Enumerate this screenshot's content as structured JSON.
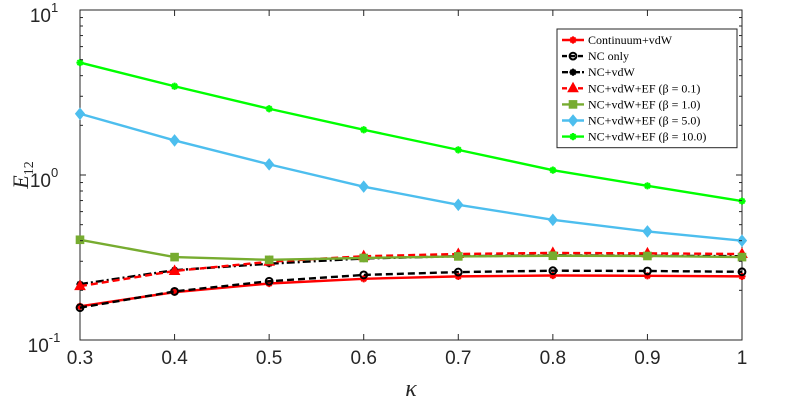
{
  "chart_data": {
    "type": "line",
    "title": "",
    "xlabel": "κ",
    "ylabel": "E",
    "ylabel_sub": "12",
    "x": [
      0.3,
      0.4,
      0.5,
      0.6,
      0.7,
      0.8,
      0.9,
      1.0
    ],
    "xlim": [
      0.3,
      1.0
    ],
    "ylim": [
      0.1,
      10
    ],
    "yscale": "log",
    "grid": false,
    "legend_position": "top-right",
    "x_tick_labels": [
      "0.3",
      "0.4",
      "0.5",
      "0.6",
      "0.7",
      "0.8",
      "0.9",
      "1"
    ],
    "y_ticks": [
      {
        "value": 10,
        "base": "10",
        "exp": "1"
      },
      {
        "value": 1,
        "base": "10",
        "exp": "0"
      },
      {
        "value": 0.1,
        "base": "10",
        "exp": "-1"
      }
    ],
    "series": [
      {
        "name": "Continuum+vdW",
        "color": "#ff0000",
        "dash": "solid",
        "marker": "star",
        "values": [
          0.16,
          0.195,
          0.22,
          0.235,
          0.243,
          0.246,
          0.245,
          0.243
        ]
      },
      {
        "name": "NC only",
        "color": "#000000",
        "dash": "dashed",
        "marker": "circle",
        "values": [
          0.157,
          0.197,
          0.227,
          0.248,
          0.258,
          0.263,
          0.262,
          0.259
        ]
      },
      {
        "name": "NC+vdW",
        "color": "#000000",
        "dash": "dashdot",
        "marker": "star",
        "values": [
          0.218,
          0.265,
          0.29,
          0.312,
          0.322,
          0.326,
          0.324,
          0.322
        ]
      },
      {
        "name": "NC+vdW+EF (β = 0.1)",
        "color": "#ff0000",
        "dash": "dashed",
        "marker": "triangle",
        "values": [
          0.212,
          0.262,
          0.298,
          0.322,
          0.332,
          0.337,
          0.335,
          0.332
        ]
      },
      {
        "name": "NC+vdW+EF (β = 1.0)",
        "color": "#77ac30",
        "dash": "solid",
        "marker": "square",
        "values": [
          0.405,
          0.318,
          0.306,
          0.314,
          0.321,
          0.324,
          0.323,
          0.318
        ]
      },
      {
        "name": "NC+vdW+EF (β = 5.0)",
        "color": "#4dbeee",
        "dash": "solid",
        "marker": "diamond",
        "values": [
          2.35,
          1.62,
          1.16,
          0.85,
          0.66,
          0.535,
          0.455,
          0.4
        ]
      },
      {
        "name": "NC+vdW+EF (β = 10.0)",
        "color": "#00ff00",
        "dash": "solid",
        "marker": "star",
        "values": [
          4.8,
          3.45,
          2.52,
          1.88,
          1.42,
          1.07,
          0.86,
          0.695
        ]
      }
    ]
  }
}
